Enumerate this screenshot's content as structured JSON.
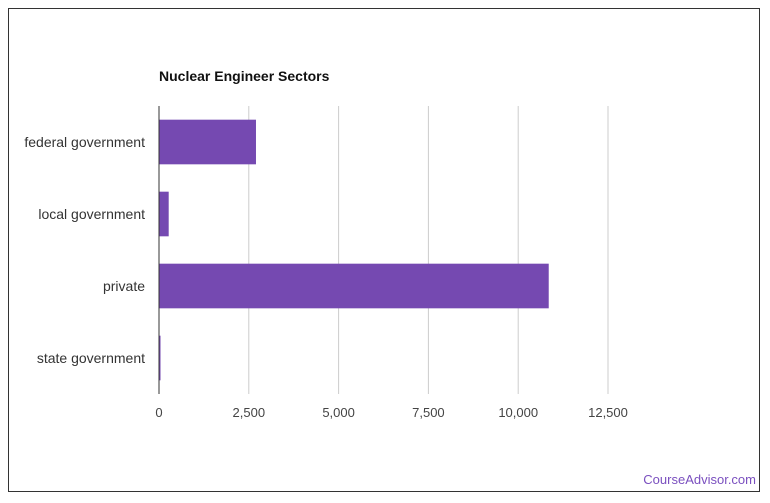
{
  "chart_data": {
    "type": "bar",
    "orientation": "horizontal",
    "title": "Nuclear Engineer Sectors",
    "categories": [
      "federal government",
      "local government",
      "private",
      "state government"
    ],
    "values": [
      2700,
      270,
      10850,
      40
    ],
    "xlim": [
      0,
      12500
    ],
    "xticks": [
      0,
      2500,
      5000,
      7500,
      10000,
      12500
    ],
    "xtick_labels": [
      "0",
      "2,500",
      "5,000",
      "7,500",
      "10,000",
      "12,500"
    ],
    "xlabel": "",
    "ylabel": "",
    "grid": true,
    "bar_color": "#7549b1"
  },
  "footer": {
    "source": "CourseAdvisor.com",
    "color": "#7a4fbf"
  }
}
